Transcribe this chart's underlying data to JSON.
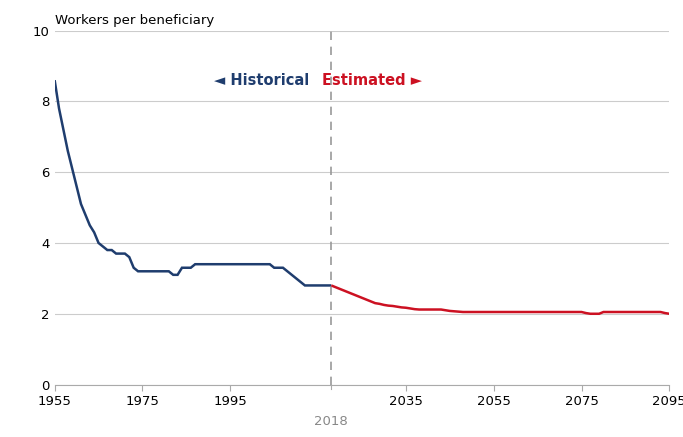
{
  "ylabel": "Workers per beneficiary",
  "ylim": [
    0,
    10
  ],
  "yticks": [
    0,
    2,
    4,
    6,
    8,
    10
  ],
  "xlim": [
    1955,
    2095
  ],
  "xticks": [
    1955,
    1975,
    1995,
    2035,
    2055,
    2075,
    2095
  ],
  "xticklabels": [
    "1955",
    "1975",
    "1995",
    "2035",
    "2055",
    "2075",
    "2095"
  ],
  "divider_year": 2018,
  "divider_label": "2018",
  "historical_color": "#1f3d6e",
  "estimated_color": "#cc1122",
  "divider_color": "#999999",
  "label_historical": "Historical",
  "label_estimated": "Estimated",
  "historical_data": {
    "years": [
      1955,
      1956,
      1957,
      1958,
      1959,
      1960,
      1961,
      1962,
      1963,
      1964,
      1965,
      1966,
      1967,
      1968,
      1969,
      1970,
      1971,
      1972,
      1973,
      1974,
      1975,
      1976,
      1977,
      1978,
      1979,
      1980,
      1981,
      1982,
      1983,
      1984,
      1985,
      1986,
      1987,
      1988,
      1989,
      1990,
      1991,
      1992,
      1993,
      1994,
      1995,
      1996,
      1997,
      1998,
      1999,
      2000,
      2001,
      2002,
      2003,
      2004,
      2005,
      2006,
      2007,
      2008,
      2009,
      2010,
      2011,
      2012,
      2013,
      2014,
      2015,
      2016,
      2017,
      2018
    ],
    "values": [
      8.6,
      7.8,
      7.2,
      6.6,
      6.1,
      5.6,
      5.1,
      4.8,
      4.5,
      4.3,
      4.0,
      3.9,
      3.8,
      3.8,
      3.7,
      3.7,
      3.7,
      3.6,
      3.3,
      3.2,
      3.2,
      3.2,
      3.2,
      3.2,
      3.2,
      3.2,
      3.2,
      3.1,
      3.1,
      3.3,
      3.3,
      3.3,
      3.4,
      3.4,
      3.4,
      3.4,
      3.4,
      3.4,
      3.4,
      3.4,
      3.4,
      3.4,
      3.4,
      3.4,
      3.4,
      3.4,
      3.4,
      3.4,
      3.4,
      3.4,
      3.3,
      3.3,
      3.3,
      3.2,
      3.1,
      3.0,
      2.9,
      2.8,
      2.8,
      2.8,
      2.8,
      2.8,
      2.8,
      2.8
    ]
  },
  "estimated_data": {
    "years": [
      2018,
      2019,
      2020,
      2021,
      2022,
      2023,
      2024,
      2025,
      2026,
      2027,
      2028,
      2029,
      2030,
      2031,
      2032,
      2033,
      2034,
      2035,
      2036,
      2037,
      2038,
      2039,
      2040,
      2041,
      2042,
      2043,
      2044,
      2045,
      2046,
      2047,
      2048,
      2049,
      2050,
      2051,
      2052,
      2053,
      2054,
      2055,
      2056,
      2057,
      2058,
      2059,
      2060,
      2061,
      2062,
      2063,
      2064,
      2065,
      2066,
      2067,
      2068,
      2069,
      2070,
      2071,
      2072,
      2073,
      2074,
      2075,
      2076,
      2077,
      2078,
      2079,
      2080,
      2081,
      2082,
      2083,
      2084,
      2085,
      2086,
      2087,
      2088,
      2089,
      2090,
      2091,
      2092,
      2093,
      2094,
      2095
    ],
    "values": [
      2.8,
      2.75,
      2.7,
      2.65,
      2.6,
      2.55,
      2.5,
      2.45,
      2.4,
      2.35,
      2.3,
      2.28,
      2.25,
      2.23,
      2.22,
      2.2,
      2.18,
      2.17,
      2.15,
      2.13,
      2.12,
      2.12,
      2.12,
      2.12,
      2.12,
      2.12,
      2.1,
      2.08,
      2.07,
      2.06,
      2.05,
      2.05,
      2.05,
      2.05,
      2.05,
      2.05,
      2.05,
      2.05,
      2.05,
      2.05,
      2.05,
      2.05,
      2.05,
      2.05,
      2.05,
      2.05,
      2.05,
      2.05,
      2.05,
      2.05,
      2.05,
      2.05,
      2.05,
      2.05,
      2.05,
      2.05,
      2.05,
      2.05,
      2.02,
      2.0,
      2.0,
      2.0,
      2.05,
      2.05,
      2.05,
      2.05,
      2.05,
      2.05,
      2.05,
      2.05,
      2.05,
      2.05,
      2.05,
      2.05,
      2.05,
      2.05,
      2.02,
      2.0
    ]
  },
  "background_color": "#ffffff",
  "grid_color": "#cccccc",
  "spine_color": "#aaaaaa"
}
